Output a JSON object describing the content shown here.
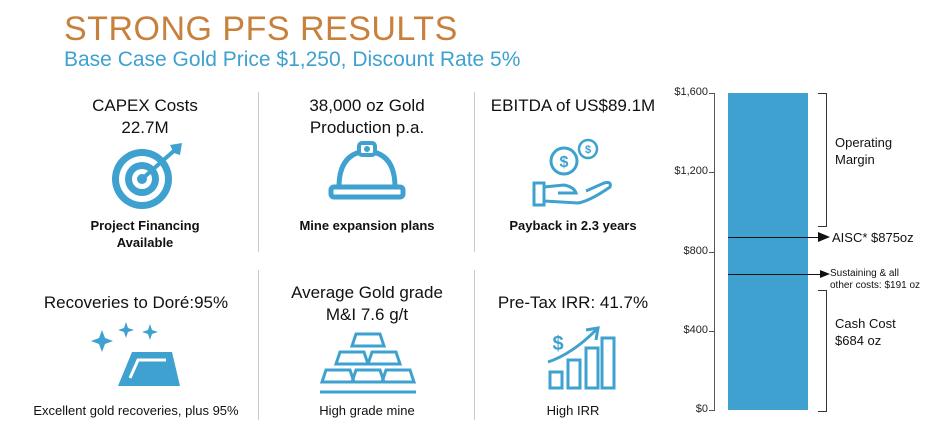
{
  "header": {
    "title": "STRONG PFS RESULTS",
    "subtitle": "Base Case Gold Price $1,250, Discount Rate 5%"
  },
  "metrics": [
    {
      "head": "CAPEX Costs\n22.7M",
      "foot": "Project Financing\nAvailable",
      "icon": "target-icon"
    },
    {
      "head": "38,000 oz Gold\nProduction p.a.",
      "foot": "Mine expansion plans",
      "icon": "hard-hat-icon"
    },
    {
      "head": "EBITDA of US$89.1M",
      "foot": "Payback in 2.3 years",
      "icon": "hand-coin-icon"
    },
    {
      "head": "Recoveries to Doré:95%",
      "foot": "Excellent gold recoveries, plus 95%",
      "icon": "gold-bar-sparkle-icon"
    },
    {
      "head": "Average Gold grade\nM&I 7.6 g/t",
      "foot": "High grade mine",
      "icon": "gold-stack-icon"
    },
    {
      "head": "Pre-Tax IRR: 41.7%",
      "foot": "High IRR",
      "icon": "growth-chart-icon"
    }
  ],
  "chart_data": {
    "type": "bar",
    "ylim": [
      0,
      1600
    ],
    "yticks": [
      "$0",
      "$400",
      "$800",
      "$1,200",
      "$1,600"
    ],
    "ytick_values": [
      0,
      400,
      800,
      1200,
      1600
    ],
    "values": [
      1600
    ],
    "color": "#3ea1cf",
    "annotations": {
      "aisc": {
        "label": "AISC* $875oz",
        "value": 875
      },
      "sustaining": {
        "label": "Sustaining & all\nother costs: $191 oz",
        "value": 684
      },
      "operating_margin": {
        "label": "Operating\nMargin"
      },
      "cash_cost": {
        "label": "Cash Cost\n$684 oz",
        "value": 684
      }
    }
  }
}
